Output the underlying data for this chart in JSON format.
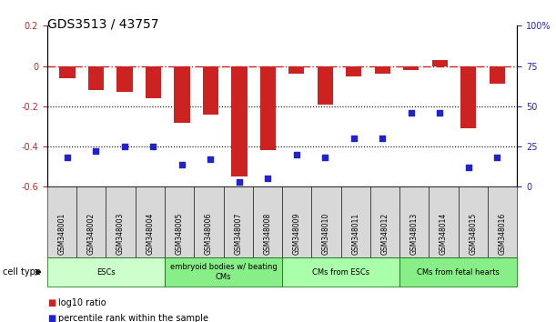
{
  "title": "GDS3513 / 43757",
  "samples": [
    "GSM348001",
    "GSM348002",
    "GSM348003",
    "GSM348004",
    "GSM348005",
    "GSM348006",
    "GSM348007",
    "GSM348008",
    "GSM348009",
    "GSM348010",
    "GSM348011",
    "GSM348012",
    "GSM348013",
    "GSM348014",
    "GSM348015",
    "GSM348016"
  ],
  "log10_ratio": [
    -0.06,
    -0.12,
    -0.13,
    -0.16,
    -0.28,
    -0.24,
    -0.55,
    -0.42,
    -0.04,
    -0.19,
    -0.05,
    -0.04,
    -0.02,
    0.03,
    -0.31,
    -0.09
  ],
  "percentile_rank": [
    18,
    22,
    25,
    25,
    14,
    17,
    3,
    5,
    20,
    18,
    30,
    30,
    46,
    46,
    12,
    18
  ],
  "ylim_left": [
    -0.6,
    0.2
  ],
  "ylim_right": [
    0,
    100
  ],
  "bar_color": "#cc2222",
  "dot_color": "#2222cc",
  "refline_color": "#cc2222",
  "cell_type_groups": [
    {
      "label": "ESCs",
      "start": 0,
      "end": 3,
      "color": "#ccffcc"
    },
    {
      "label": "embryoid bodies w/ beating\nCMs",
      "start": 4,
      "end": 7,
      "color": "#88ee88"
    },
    {
      "label": "CMs from ESCs",
      "start": 8,
      "end": 11,
      "color": "#aaffaa"
    },
    {
      "label": "CMs from fetal hearts",
      "start": 12,
      "end": 15,
      "color": "#88ee88"
    }
  ],
  "legend_bar_label": "log10 ratio",
  "legend_dot_label": "percentile rank within the sample",
  "xlabel_cell_type": "cell type",
  "title_fontsize": 10,
  "axis_fontsize": 7,
  "bar_width": 0.55,
  "left_yticks": [
    0.2,
    0.0,
    -0.2,
    -0.4,
    -0.6
  ],
  "left_yticklabels": [
    "0.2",
    "0",
    "-0.2",
    "-0.4",
    "-0.6"
  ],
  "right_yticks": [
    100,
    75,
    50,
    25,
    0
  ],
  "right_yticklabels": [
    "100%",
    "75",
    "50",
    "25",
    "0"
  ]
}
